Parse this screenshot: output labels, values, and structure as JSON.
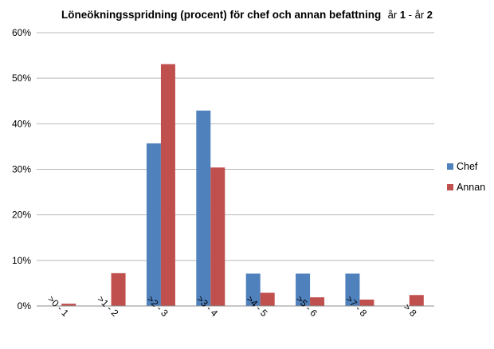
{
  "chart_data": {
    "type": "bar",
    "title": "Löneökningsspridning (procent) för chef och annan befattning",
    "title_suffix": [
      "år ",
      "1",
      " - år ",
      "2"
    ],
    "categories": [
      ">0 - 1",
      ">1 - 2",
      ">2 - 3",
      ">3 - 4",
      ">4 - 5",
      ">5 - 6",
      ">7 - 8",
      "> 8"
    ],
    "series": [
      {
        "name": "Chef",
        "color": "#4F81BD",
        "values": [
          0,
          0,
          35.7,
          42.9,
          7.1,
          7.1,
          7.1,
          0
        ]
      },
      {
        "name": "Annan",
        "color": "#C0504D",
        "values": [
          0.5,
          7.2,
          53.1,
          30.4,
          2.9,
          1.9,
          1.4,
          2.4
        ]
      }
    ],
    "ylim": [
      0,
      60
    ],
    "yticks": [
      0,
      10,
      20,
      30,
      40,
      50,
      60
    ],
    "ytick_format": "{v}%",
    "grid": true,
    "legend": "right",
    "xlabel": "",
    "ylabel": ""
  }
}
